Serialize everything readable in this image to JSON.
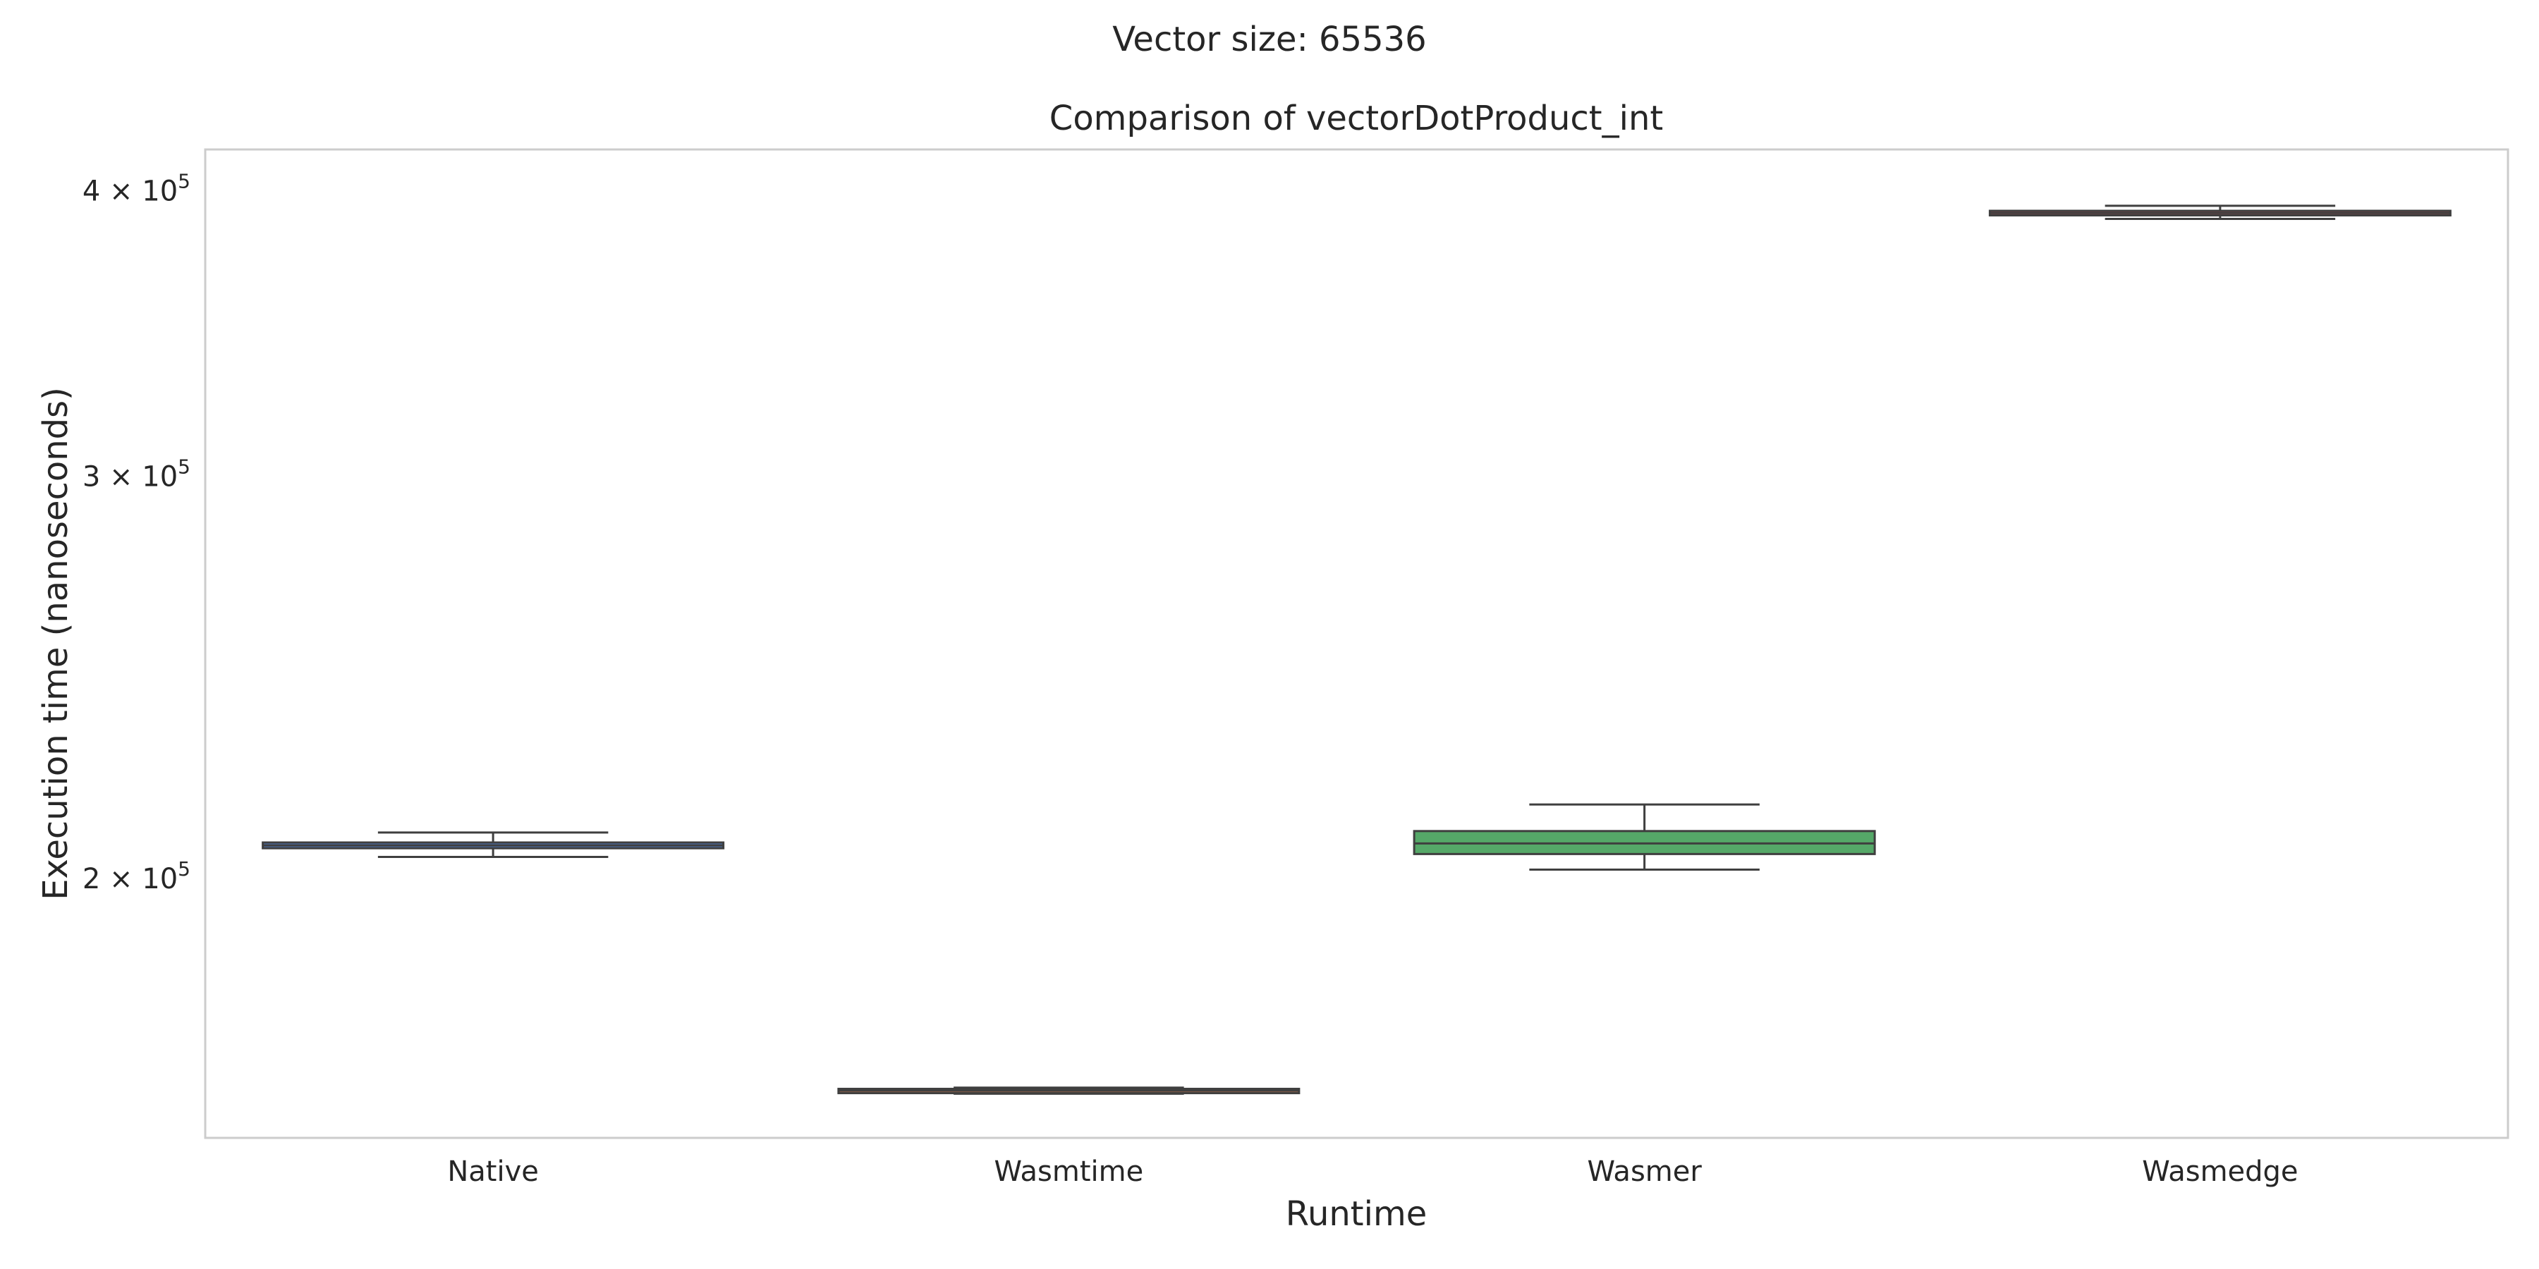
{
  "figure": {
    "suptitle": "Vector size: 65536"
  },
  "chart_data": {
    "type": "box",
    "title": "Comparison of vectorDotProduct_int",
    "xlabel": "Runtime",
    "ylabel": "Execution time (nanoseconds)",
    "yscale": "log",
    "ylim": [
      154000,
      417000
    ],
    "grid": false,
    "categories": [
      "Native",
      "Wasmtime",
      "Wasmer",
      "Wasmedge"
    ],
    "y_ticks": [
      {
        "value": 200000,
        "base": "2 × 10",
        "exp": "5"
      },
      {
        "value": 300000,
        "base": "3 × 10",
        "exp": "5"
      },
      {
        "value": 400000,
        "base": "4 × 10",
        "exp": "5"
      }
    ],
    "series": [
      {
        "category": "Native",
        "whisker_low": 204400,
        "q1": 206200,
        "median": 206800,
        "q3": 207400,
        "whisker_high": 209500,
        "color": "#4c72b0"
      },
      {
        "category": "Wasmtime",
        "whisker_low": 161000,
        "q1": 161100,
        "median": 161500,
        "q3": 161800,
        "whisker_high": 162000,
        "color": "#dd8452"
      },
      {
        "category": "Wasmer",
        "whisker_low": 201800,
        "q1": 205000,
        "median": 207200,
        "q3": 209800,
        "whisker_high": 215500,
        "color": "#55a868"
      },
      {
        "category": "Wasmedge",
        "whisker_low": 388800,
        "q1": 390200,
        "median": 391100,
        "q3": 392000,
        "whisker_high": 394000,
        "color": "#c44e52"
      }
    ]
  }
}
